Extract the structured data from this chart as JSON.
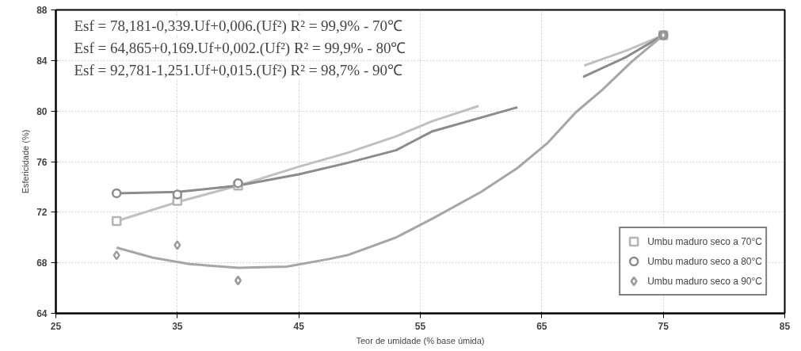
{
  "chart_data": {
    "type": "scatter",
    "xlabel": "Teor de umidade (% base úmida)",
    "ylabel": "Esfericidade (%)",
    "xlim": [
      25,
      85
    ],
    "xticks": [
      25,
      35,
      45,
      55,
      65,
      75,
      85
    ],
    "ylim": [
      64,
      88
    ],
    "yticks": [
      64,
      68,
      72,
      76,
      80,
      84,
      88
    ],
    "grid": true,
    "legend": "bottom right",
    "annotations": [
      "Esf = 78,181-0,339.Uf+0,006.(Uf²)  R² =  99,9% - 70℃",
      "Esf = 64,865+0,169.Uf+0,002.(Uf²)  R² = 99,9% - 80℃",
      "Esf = 92,781-1,251.Uf+0,015.(Uf²)  R² = 98,7% - 90℃"
    ],
    "series": [
      {
        "type": "line",
        "color": "#c0c0c0",
        "marker": "none",
        "x": [
          30,
          35,
          40,
          45,
          49,
          53,
          56,
          59.8,
          64,
          68.5,
          72,
          75
        ],
        "values": [
          71.3,
          72.8,
          74.1,
          75.6,
          76.7,
          78.0,
          79.2,
          80.4,
          null,
          83.6,
          84.8,
          86
        ]
      },
      {
        "type": "line",
        "color": "#8c8c8c",
        "marker": "none",
        "x": [
          30,
          35,
          40,
          45,
          49,
          53,
          56,
          63,
          66,
          68.4,
          72,
          75
        ],
        "values": [
          73.5,
          73.6,
          74.1,
          75.0,
          75.9,
          76.9,
          78.4,
          80.3,
          null,
          82.7,
          84.3,
          86
        ]
      },
      {
        "type": "line",
        "color": "#a6a6a6",
        "marker": "none",
        "x": [
          30,
          33,
          36,
          40,
          44,
          47.5,
          49,
          53,
          56,
          60,
          63,
          65.5,
          67.8,
          70,
          72.4,
          75
        ],
        "values": [
          69.2,
          68.4,
          67.9,
          67.6,
          67.7,
          68.3,
          68.6,
          70.0,
          71.5,
          73.6,
          75.5,
          77.5,
          79.9,
          81.7,
          83.9,
          86
        ]
      },
      {
        "name": "Umbu maduro seco a 70°C",
        "color": "#b4b4b4",
        "marker": "square",
        "x": [
          30,
          35,
          40,
          75
        ],
        "values": [
          71.3,
          72.9,
          74.1,
          86
        ]
      },
      {
        "name": "Umbu maduro seco a 80°C",
        "color": "#8c8c8c",
        "marker": "circle",
        "x": [
          30,
          35,
          40,
          75
        ],
        "values": [
          73.5,
          73.4,
          74.3,
          86
        ]
      },
      {
        "name": "Umbu maduro seco a 90°C",
        "color": "#9a9a9a",
        "marker": "diamond",
        "x": [
          30,
          35,
          40,
          75
        ],
        "values": [
          68.6,
          69.4,
          66.6,
          86
        ]
      }
    ]
  }
}
